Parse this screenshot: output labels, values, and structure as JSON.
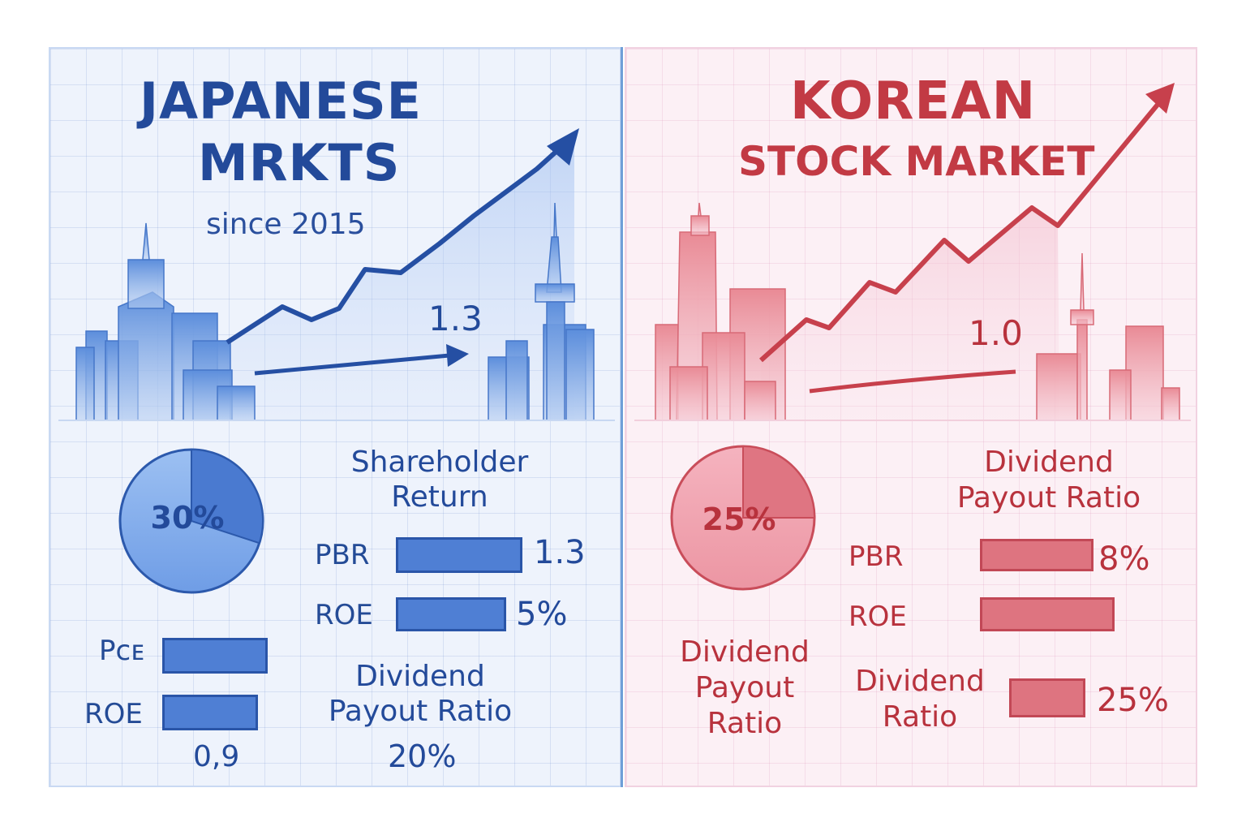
{
  "japan": {
    "title_line1": "JAPANESE",
    "title_line2": "MRKTS",
    "subtitle": "since 2015",
    "arrow_value": "1.3",
    "pie": {
      "percent_label": "30%",
      "share": 0.3
    },
    "shareholder_heading_line1": "Shareholder",
    "shareholder_heading_line2": "Return",
    "metrics": [
      {
        "label": "PBR",
        "value": "1.3"
      },
      {
        "label": "ROE",
        "value": "5%"
      }
    ],
    "lower_metrics": [
      {
        "label": "Pᴄᴇ"
      },
      {
        "label": "ROE",
        "value": "0,9"
      }
    ],
    "dividend_line1": "Dividend",
    "dividend_line2": "Payout Ratio",
    "dividend_value": "20%"
  },
  "korea": {
    "title_line1": "KOREAN",
    "title_line2": "STOCK MARKET",
    "arrow_value": "1.0",
    "pie": {
      "percent_label": "25%",
      "share": 0.25
    },
    "payout_heading_line1": "Dividend",
    "payout_heading_line2": "Payout Ratio",
    "metrics": [
      {
        "label": "PBR",
        "value": "8%"
      },
      {
        "label": "ROE",
        "value": ""
      }
    ],
    "left_heading_line1": "Dividend",
    "left_heading_line2": "Payout",
    "left_heading_line3": "Ratio",
    "dividend_ratio_line1": "Dividend",
    "dividend_ratio_line2": "Ratio",
    "dividend_ratio_value": "25%"
  },
  "colors": {
    "japan_primary": "#234a9a",
    "japan_fill": "#4f7fd4",
    "korea_primary": "#c23a44",
    "korea_fill": "#de7480"
  },
  "icons": [
    "jp-city-skyline-icon",
    "jp-tokyo-tower-icon",
    "kr-city-skyline-icon",
    "kr-seoul-tower-icon",
    "trend-arrow-icon"
  ]
}
